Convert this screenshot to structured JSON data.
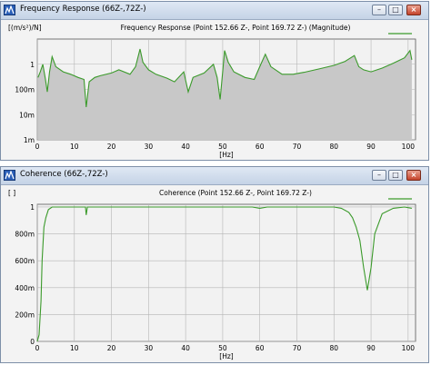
{
  "windows": {
    "fr": {
      "title": "Frequency Response (66Z-,72Z-)",
      "buttons": {
        "minimize": "–",
        "maximize": "□",
        "close": "×"
      }
    },
    "coh": {
      "title": "Coherence (66Z-,72Z-)",
      "buttons": {
        "minimize": "–",
        "maximize": "□",
        "close": "×"
      }
    }
  },
  "colors": {
    "trace": "#3b9a2b",
    "fill": "#c8c8c8",
    "plot_bg": "#f2f2f2",
    "grid": "#b5b5b5"
  },
  "chart_data": [
    {
      "type": "area",
      "title": "Frequency Response (Point 152.66 Z-, Point 169.72 Z-) (Magnitude)",
      "ylabel": "[(m/s²)/N]",
      "xlabel": "[Hz]",
      "y_scale": "log",
      "xlim": [
        0,
        102
      ],
      "ylim": [
        0.001,
        10
      ],
      "x_ticks": [
        0,
        10,
        20,
        30,
        40,
        50,
        60,
        70,
        80,
        90,
        100
      ],
      "y_ticks": [
        {
          "value": 1,
          "label": "1"
        },
        {
          "value": 0.1,
          "label": "100m"
        },
        {
          "value": 0.01,
          "label": "10m"
        },
        {
          "value": 0.001,
          "label": "1m"
        }
      ],
      "grid": true,
      "legend": "top-right, line swatch only",
      "x": [
        0.2,
        0.8,
        1.5,
        2.2,
        2.7,
        3.3,
        4,
        5,
        7,
        9,
        11,
        12.6,
        13.2,
        14,
        15.5,
        17,
        20,
        22,
        25,
        26.5,
        27.7,
        28.5,
        30,
        32,
        35,
        37,
        39.5,
        40.7,
        42,
        45,
        47.5,
        48.5,
        49.3,
        50,
        50.5,
        51.5,
        53,
        56,
        58.5,
        60,
        61.5,
        63,
        66,
        69,
        72,
        76,
        80,
        83,
        85.5,
        86.7,
        88,
        90,
        93,
        96,
        99,
        100.5,
        101
      ],
      "y": [
        0.3,
        0.5,
        1.0,
        0.25,
        0.08,
        0.5,
        2.0,
        0.8,
        0.5,
        0.4,
        0.3,
        0.25,
        0.02,
        0.2,
        0.3,
        0.35,
        0.45,
        0.6,
        0.4,
        0.8,
        4.0,
        1.2,
        0.6,
        0.4,
        0.28,
        0.2,
        0.5,
        0.08,
        0.3,
        0.45,
        1.0,
        0.3,
        0.04,
        0.5,
        3.5,
        1.2,
        0.5,
        0.3,
        0.25,
        0.8,
        2.5,
        0.8,
        0.4,
        0.4,
        0.48,
        0.65,
        0.9,
        1.3,
        2.2,
        0.8,
        0.6,
        0.5,
        0.7,
        1.1,
        1.8,
        3.5,
        1.5
      ]
    },
    {
      "type": "line",
      "title": "Coherence (Point 152.66 Z-, Point 169.72 Z-)",
      "ylabel": "[ ]",
      "xlabel": "[Hz]",
      "xlim": [
        0,
        102
      ],
      "ylim": [
        0,
        1.02
      ],
      "x_ticks": [
        0,
        10,
        20,
        30,
        40,
        50,
        60,
        70,
        80,
        90,
        100
      ],
      "y_ticks": [
        {
          "value": 1,
          "label": "1"
        },
        {
          "value": 0.8,
          "label": "800m"
        },
        {
          "value": 0.6,
          "label": "600m"
        },
        {
          "value": 0.4,
          "label": "400m"
        },
        {
          "value": 0.2,
          "label": "200m"
        },
        {
          "value": 0,
          "label": "0"
        }
      ],
      "grid": true,
      "legend": "top-right, line swatch only",
      "x": [
        0,
        0.5,
        1,
        1.3,
        1.8,
        2.3,
        3,
        4,
        6,
        10,
        13,
        13.2,
        13.5,
        14,
        20,
        30,
        40,
        50,
        58,
        60,
        62,
        70,
        80,
        82,
        84,
        85,
        86,
        87,
        88,
        89,
        90,
        91,
        93,
        96,
        99,
        101
      ],
      "y": [
        0.0,
        0.05,
        0.3,
        0.6,
        0.85,
        0.92,
        0.98,
        1.0,
        1.0,
        1.0,
        1.0,
        0.94,
        1.0,
        1.0,
        1.0,
        1.0,
        1.0,
        1.0,
        1.0,
        0.99,
        1.0,
        1.0,
        1.0,
        0.99,
        0.96,
        0.92,
        0.85,
        0.75,
        0.55,
        0.38,
        0.55,
        0.8,
        0.95,
        0.99,
        1.0,
        0.99
      ]
    }
  ]
}
